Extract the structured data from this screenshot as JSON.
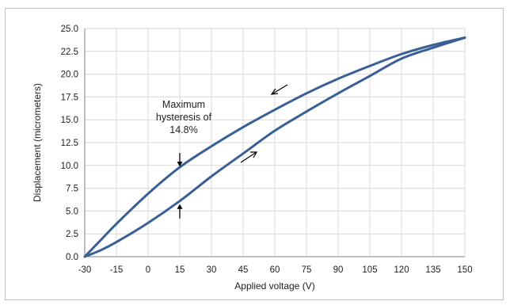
{
  "chart_data": {
    "type": "line",
    "title": "",
    "xlabel": "Applied voltage (V)",
    "ylabel": "Displacement (micrometers)",
    "xlim": [
      -30,
      150
    ],
    "ylim": [
      0,
      25
    ],
    "x_ticks": [
      -30,
      -15,
      0,
      15,
      30,
      45,
      60,
      75,
      90,
      105,
      120,
      135,
      150
    ],
    "y_ticks": [
      "0.0",
      "2.5",
      "5.0",
      "7.5",
      "10.0",
      "12.5",
      "15.0",
      "17.5",
      "20.0",
      "22.5",
      "25.0"
    ],
    "grid": "both",
    "legend": "none",
    "series_color": "#3a5f95",
    "series": [
      {
        "x": [
          -30,
          -22.5,
          -15,
          0,
          15,
          30,
          45,
          60,
          75,
          90,
          105,
          120,
          135,
          150
        ],
        "y": [
          0.0,
          0.7,
          1.6,
          3.7,
          6.1,
          8.8,
          11.3,
          13.8,
          15.9,
          17.9,
          19.8,
          21.7,
          22.9,
          24.0
        ]
      },
      {
        "x": [
          150,
          135,
          120,
          105,
          90,
          75,
          60,
          45,
          30,
          15,
          0,
          -15,
          -22.5,
          -30
        ],
        "y": [
          24.0,
          23.2,
          22.2,
          20.9,
          19.5,
          17.9,
          16.1,
          14.2,
          12.1,
          9.8,
          6.9,
          3.6,
          1.8,
          0.0
        ]
      }
    ],
    "annotations": {
      "hysteresis_lines": [
        "Maximum",
        "hysteresis of",
        "14.8%"
      ],
      "hysteresis_x": 15,
      "top_arrow_y": 9.8,
      "bottom_arrow_y": 6.1
    }
  }
}
